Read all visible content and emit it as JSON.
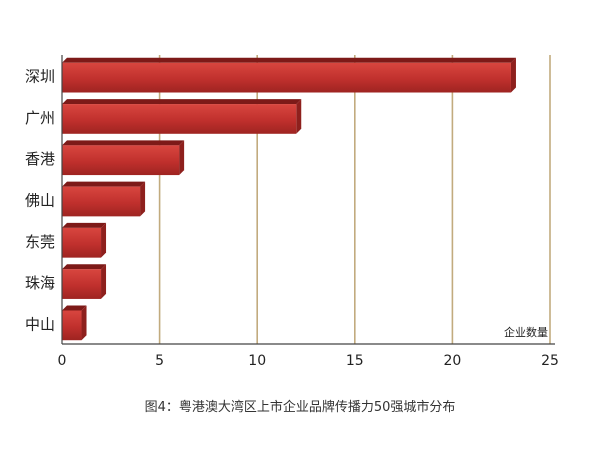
{
  "chart_data": {
    "type": "bar",
    "orientation": "horizontal",
    "categories": [
      "深圳",
      "广州",
      "香港",
      "佛山",
      "东莞",
      "珠海",
      "中山"
    ],
    "values": [
      23,
      12,
      6,
      4,
      2,
      2,
      1
    ],
    "xlim": [
      0,
      25
    ],
    "xticks": [
      0,
      5,
      10,
      15,
      20,
      25
    ],
    "xlabel": "企业数量",
    "ylabel": "",
    "grid": "vertical",
    "bar_color": "#c0302d",
    "grid_color": "#c2ab7e"
  },
  "caption": "图4：粤港澳大湾区上市企业品牌传播力50强城市分布"
}
